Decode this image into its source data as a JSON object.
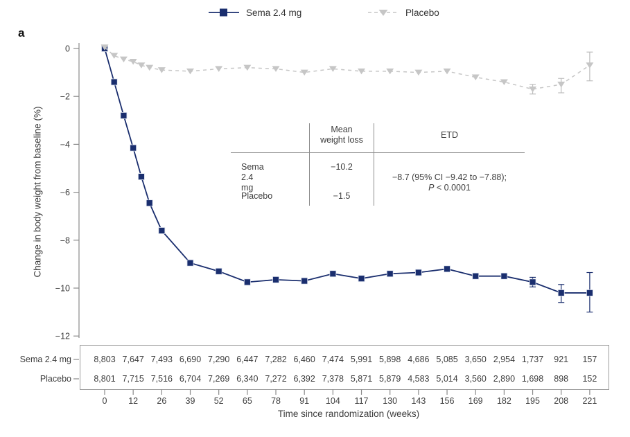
{
  "figure": {
    "panel_label": "a",
    "x_axis_title": "Time since randomization (weeks)",
    "y_axis_title": "Change in body weight from baseline (%)"
  },
  "legend": {
    "items": [
      {
        "label": "Sema 2.4 mg",
        "marker": "square",
        "line": "solid"
      },
      {
        "label": "Placebo",
        "marker": "triangle-down",
        "line": "dashed"
      }
    ]
  },
  "inset_table": {
    "col2_header_line1": "Mean",
    "col2_header_line2": "weight loss",
    "col3_header": "ETD",
    "rows": [
      {
        "label": "Sema 2.4 mg",
        "value": "−10.2"
      },
      {
        "label": "Placebo",
        "value": "−1.5"
      }
    ],
    "etd_line1": "−8.7 (95% CI −9.42 to −7.88);",
    "etd_p_italic": "P",
    "etd_p_rest": " < 0.0001"
  },
  "colors": {
    "sema": "#1a2e6e",
    "placebo": "#c6c6c6",
    "placebo_err": "#bdbdbd",
    "axis": "#8a8a8a",
    "text": "#3d3d3d",
    "border": "#9a9a9a"
  },
  "chart_data": {
    "type": "line",
    "title": "",
    "xlabel": "Time since randomization (weeks)",
    "ylabel": "Change in body weight from baseline (%)",
    "ylim": [
      -12.6,
      0.5
    ],
    "grid": false,
    "legend_position": "top-center",
    "y_ticks": [
      0,
      -2,
      -4,
      -6,
      -8,
      -10,
      -12
    ],
    "y_tick_labels": [
      "0",
      "−2",
      "−4",
      "−6",
      "−8",
      "−10",
      "−12"
    ],
    "tick_weeks": [
      0,
      12,
      26,
      39,
      52,
      65,
      78,
      91,
      104,
      117,
      130,
      143,
      156,
      169,
      182,
      195,
      208,
      221
    ],
    "x": [
      0,
      4,
      8,
      12,
      16,
      20,
      26,
      39,
      52,
      65,
      78,
      91,
      104,
      117,
      130,
      143,
      156,
      169,
      182,
      195,
      208,
      221
    ],
    "series": [
      {
        "name": "Sema 2.4 mg",
        "marker": "square",
        "line": "solid",
        "values": [
          0,
          -1.4,
          -2.8,
          -4.15,
          -5.35,
          -6.45,
          -7.6,
          -8.95,
          -9.3,
          -9.75,
          -9.65,
          -9.7,
          -9.4,
          -9.6,
          -9.4,
          -9.35,
          -9.2,
          -9.5,
          -9.5,
          -9.75,
          -10.2,
          -10.2
        ],
        "error_bars": {
          "195": [
            -9.95,
            -9.55
          ],
          "208": [
            -10.6,
            -9.85
          ],
          "221": [
            -11.0,
            -9.35
          ]
        }
      },
      {
        "name": "Placebo",
        "marker": "triangle-down",
        "line": "dashed",
        "values": [
          0.05,
          -0.3,
          -0.45,
          -0.55,
          -0.7,
          -0.8,
          -0.9,
          -0.95,
          -0.85,
          -0.8,
          -0.85,
          -1.0,
          -0.85,
          -0.95,
          -0.95,
          -1.0,
          -0.95,
          -1.2,
          -1.4,
          -1.7,
          -1.5,
          -0.7
        ],
        "error_bars": {
          "195": [
            -1.9,
            -1.5
          ],
          "208": [
            -1.85,
            -1.25
          ],
          "221": [
            -1.35,
            -0.15
          ]
        }
      }
    ],
    "risk_table": {
      "rows": [
        {
          "label": "Sema 2.4 mg",
          "counts": [
            "8,803",
            "7,647",
            "7,493",
            "6,690",
            "7,290",
            "6,447",
            "7,282",
            "6,460",
            "7,474",
            "5,991",
            "5,898",
            "4,686",
            "5,085",
            "3,650",
            "2,954",
            "1,737",
            "921",
            "157"
          ]
        },
        {
          "label": "Placebo",
          "counts": [
            "8,801",
            "7,715",
            "7,516",
            "6,704",
            "7,269",
            "6,340",
            "7,272",
            "6,392",
            "7,378",
            "5,871",
            "5,879",
            "4,583",
            "5,014",
            "3,560",
            "2,890",
            "1,698",
            "898",
            "152"
          ]
        }
      ]
    }
  }
}
